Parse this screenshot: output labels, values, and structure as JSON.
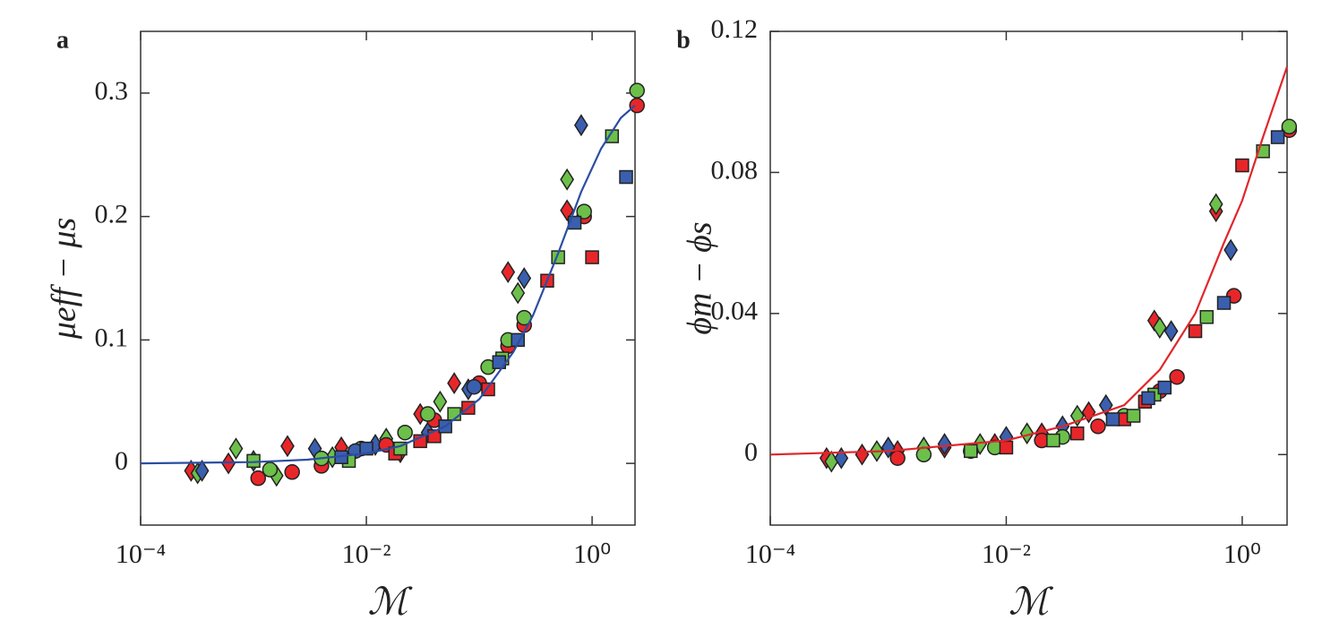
{
  "chart_data": [
    {
      "type": "scatter",
      "panel_label": "a",
      "ylabel": "μeff − μs",
      "xlabel": "ℳ",
      "xscale": "log",
      "xlim": [
        0.0001,
        2.4
      ],
      "ylim": [
        -0.05,
        0.35
      ],
      "xticks": [
        {
          "value": 0.0001,
          "label": "10⁻⁴"
        },
        {
          "value": 0.01,
          "label": "10⁻²"
        },
        {
          "value": 1,
          "label": "10⁰"
        }
      ],
      "yticks": [
        0,
        0.1,
        0.2,
        0.3
      ],
      "series": [
        {
          "style": "line",
          "color": "#2b4ea2",
          "x": [
            0.0001,
            0.001,
            0.003,
            0.01,
            0.02,
            0.05,
            0.1,
            0.2,
            0.3,
            0.5,
            0.8,
            1.2,
            1.8,
            2.4
          ],
          "values": [
            0,
            0.001,
            0.003,
            0.008,
            0.014,
            0.03,
            0.052,
            0.09,
            0.12,
            0.17,
            0.22,
            0.255,
            0.28,
            0.29
          ]
        },
        {
          "style": "marker",
          "marker": "diamond",
          "color": "#e8262a",
          "x": [
            0.00028,
            0.0006,
            0.002,
            0.006,
            0.02,
            0.03,
            0.06,
            0.18,
            0.6
          ],
          "values": [
            -0.006,
            0.0,
            0.014,
            0.013,
            0.009,
            0.04,
            0.065,
            0.155,
            0.205
          ]
        },
        {
          "style": "marker",
          "marker": "diamond",
          "color": "#6cc04a",
          "x": [
            0.00032,
            0.0007,
            0.0016,
            0.005,
            0.015,
            0.045,
            0.22,
            0.6
          ],
          "values": [
            -0.008,
            0.012,
            -0.01,
            0.005,
            0.02,
            0.05,
            0.138,
            0.23
          ]
        },
        {
          "style": "marker",
          "marker": "diamond",
          "color": "#3a5fae",
          "x": [
            0.00035,
            0.001,
            0.0035,
            0.012,
            0.035,
            0.08,
            0.25,
            0.8
          ],
          "values": [
            -0.006,
            0.002,
            0.012,
            0.015,
            0.025,
            0.06,
            0.15,
            0.274
          ]
        },
        {
          "style": "marker",
          "marker": "circle",
          "color": "#e8262a",
          "x": [
            0.0011,
            0.0022,
            0.004,
            0.015,
            0.04,
            0.1,
            0.18,
            0.25,
            0.85,
            2.5
          ],
          "values": [
            -0.012,
            -0.007,
            -0.002,
            0.015,
            0.035,
            0.065,
            0.095,
            0.112,
            0.2,
            0.29
          ]
        },
        {
          "style": "marker",
          "marker": "circle",
          "color": "#6cc04a",
          "x": [
            0.0014,
            0.004,
            0.009,
            0.022,
            0.035,
            0.12,
            0.18,
            0.25,
            0.85,
            2.5
          ],
          "values": [
            -0.005,
            0.004,
            0.012,
            0.025,
            0.04,
            0.078,
            0.1,
            0.118,
            0.204,
            0.302
          ]
        },
        {
          "style": "marker",
          "marker": "circle",
          "color": "#3a5fae",
          "x": [
            0.008,
            0.09
          ],
          "values": [
            0.01,
            0.062
          ]
        },
        {
          "style": "marker",
          "marker": "square",
          "color": "#e8262a",
          "x": [
            0.018,
            0.03,
            0.04,
            0.08,
            0.12,
            0.4,
            1.0
          ],
          "values": [
            0.008,
            0.018,
            0.022,
            0.045,
            0.06,
            0.148,
            0.167
          ]
        },
        {
          "style": "marker",
          "marker": "square",
          "color": "#6cc04a",
          "x": [
            0.001,
            0.007,
            0.02,
            0.06,
            0.16,
            0.5,
            1.5
          ],
          "values": [
            0.002,
            0.002,
            0.012,
            0.04,
            0.085,
            0.167,
            0.265
          ]
        },
        {
          "style": "marker",
          "marker": "square",
          "color": "#3a5fae",
          "x": [
            0.006,
            0.01,
            0.05,
            0.15,
            0.22,
            0.7,
            2.0
          ],
          "values": [
            0.005,
            0.012,
            0.03,
            0.082,
            0.1,
            0.195,
            0.232
          ]
        }
      ]
    },
    {
      "type": "scatter",
      "panel_label": "b",
      "ylabel": "ϕm − ϕs",
      "xlabel": "ℳ",
      "xscale": "log",
      "xlim": [
        0.0001,
        2.4
      ],
      "ylim": [
        -0.02,
        0.12
      ],
      "xticks": [
        {
          "value": 0.0001,
          "label": "10⁻⁴"
        },
        {
          "value": 0.01,
          "label": "10⁻²"
        },
        {
          "value": 1,
          "label": "10⁰"
        }
      ],
      "yticks": [
        0,
        0.04,
        0.08,
        0.12
      ],
      "series": [
        {
          "style": "line",
          "color": "#e0262b",
          "x": [
            0.0001,
            0.001,
            0.01,
            0.03,
            0.1,
            0.2,
            0.4,
            0.7,
            1,
            1.5,
            2.4
          ],
          "values": [
            0,
            0.001,
            0.004,
            0.008,
            0.014,
            0.024,
            0.04,
            0.06,
            0.072,
            0.09,
            0.11
          ]
        },
        {
          "style": "marker",
          "marker": "diamond",
          "color": "#e8262a",
          "x": [
            0.0003,
            0.0006,
            0.0012,
            0.003,
            0.008,
            0.02,
            0.05,
            0.18,
            0.6
          ],
          "values": [
            -0.001,
            0.0,
            0.001,
            0.002,
            0.003,
            0.006,
            0.012,
            0.038,
            0.069
          ]
        },
        {
          "style": "marker",
          "marker": "diamond",
          "color": "#6cc04a",
          "x": [
            0.00033,
            0.0008,
            0.002,
            0.006,
            0.015,
            0.04,
            0.2,
            0.6
          ],
          "values": [
            -0.002,
            0.001,
            0.002,
            0.003,
            0.006,
            0.011,
            0.036,
            0.071
          ]
        },
        {
          "style": "marker",
          "marker": "diamond",
          "color": "#3a5fae",
          "x": [
            0.0004,
            0.001,
            0.003,
            0.01,
            0.03,
            0.07,
            0.25,
            0.8
          ],
          "values": [
            -0.001,
            0.002,
            0.003,
            0.005,
            0.008,
            0.014,
            0.035,
            0.058
          ]
        },
        {
          "style": "marker",
          "marker": "circle",
          "color": "#e8262a",
          "x": [
            0.0012,
            0.005,
            0.02,
            0.06,
            0.2,
            0.28,
            0.85,
            2.5
          ],
          "values": [
            -0.001,
            0.001,
            0.004,
            0.008,
            0.018,
            0.022,
            0.045,
            0.092
          ]
        },
        {
          "style": "marker",
          "marker": "circle",
          "color": "#6cc04a",
          "x": [
            0.002,
            0.008,
            0.03,
            0.1,
            2.5
          ],
          "values": [
            0.0,
            0.002,
            0.005,
            0.011,
            0.093
          ]
        },
        {
          "style": "marker",
          "marker": "square",
          "color": "#e8262a",
          "x": [
            0.01,
            0.04,
            0.1,
            0.15,
            0.4,
            1.0
          ],
          "values": [
            0.002,
            0.006,
            0.01,
            0.015,
            0.035,
            0.082
          ]
        },
        {
          "style": "marker",
          "marker": "square",
          "color": "#6cc04a",
          "x": [
            0.005,
            0.025,
            0.12,
            0.18,
            0.5,
            1.5
          ],
          "values": [
            0.001,
            0.004,
            0.011,
            0.017,
            0.039,
            0.086
          ]
        },
        {
          "style": "marker",
          "marker": "square",
          "color": "#3a5fae",
          "x": [
            0.08,
            0.16,
            0.22,
            0.7,
            2.0
          ],
          "values": [
            0.01,
            0.016,
            0.019,
            0.043,
            0.09
          ]
        }
      ]
    }
  ]
}
